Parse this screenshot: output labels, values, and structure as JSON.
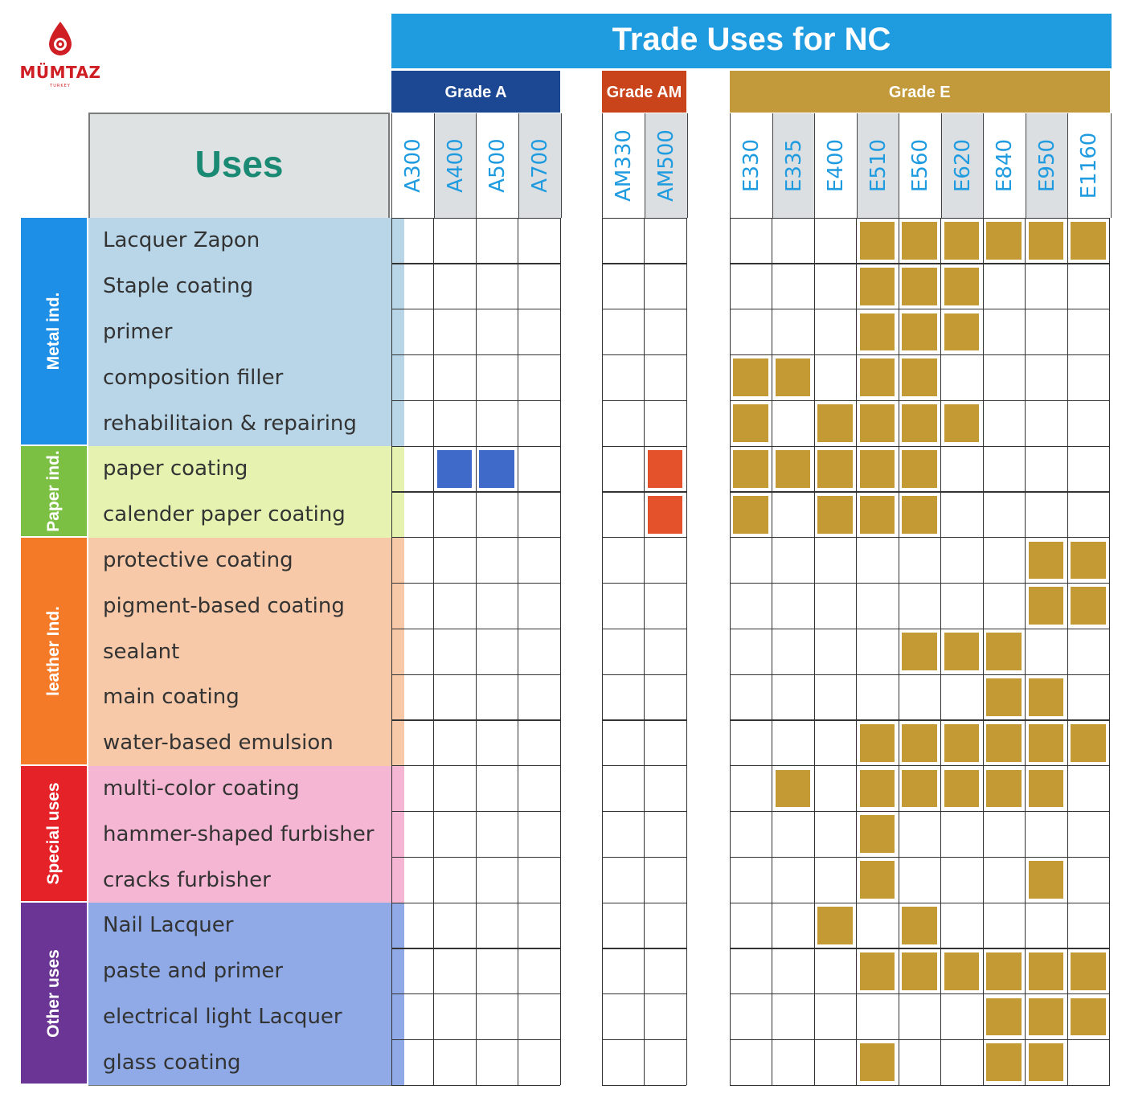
{
  "logo": {
    "name": "MÜMTAZ",
    "subtitle": "TURKEY",
    "color": "#d01f24"
  },
  "title": "Trade Uses for NC",
  "uses_header": "Uses",
  "grades": [
    {
      "label": "Grade A",
      "color": "#1c4792",
      "columns": [
        "A300",
        "A400",
        "A500",
        "A700"
      ]
    },
    {
      "label": "Grade AM",
      "color": "#c9431b",
      "columns": [
        "AM330",
        "AM500"
      ]
    },
    {
      "label": "Grade E",
      "color": "#c39a3b",
      "columns": [
        "E330",
        "E335",
        "E400",
        "E510",
        "E560",
        "E620",
        "E840",
        "E950",
        "E1160"
      ]
    }
  ],
  "mark_colors": {
    "Grade A": "#3f6ac9",
    "Grade AM": "#e3522a",
    "Grade E": "#c49a35"
  },
  "categories": [
    {
      "label": "Metal ind.",
      "color": "#1e8fe6",
      "row_color": "#b8d6e8",
      "rows": [
        "Lacquer Zapon",
        "Staple coating",
        "primer",
        "composition filler",
        "rehabilitaion & repairing"
      ]
    },
    {
      "label": "Paper ind.",
      "color": "#7bc043",
      "row_color": "#e5f2b0",
      "rows": [
        "paper coating",
        "calender paper coating"
      ]
    },
    {
      "label": "leather Ind.",
      "color": "#f47a28",
      "row_color": "#f7c9a8",
      "rows": [
        "protective coating",
        "pigment-based coating",
        "sealant",
        "main coating",
        "water-based emulsion"
      ]
    },
    {
      "label": "Special uses",
      "color": "#e42227",
      "row_color": "#f4b6d2",
      "rows": [
        "multi-color coating",
        "hammer-shaped furbisher",
        "cracks furbisher"
      ]
    },
    {
      "label": "Other uses",
      "color": "#6a3594",
      "row_color": "#8faae6",
      "rows": [
        "Nail Lacquer",
        "paste and primer",
        "electrical light Lacquer",
        "glass coating"
      ]
    }
  ],
  "marks": [
    {
      "row": "Lacquer Zapon",
      "columns": [
        "E510",
        "E560",
        "E620",
        "E840",
        "E950",
        "E1160"
      ]
    },
    {
      "row": "Staple coating",
      "columns": [
        "E510",
        "E560",
        "E620"
      ]
    },
    {
      "row": "primer",
      "columns": [
        "E510",
        "E560",
        "E620"
      ]
    },
    {
      "row": "composition filler",
      "columns": [
        "E330",
        "E335",
        "E510",
        "E560"
      ]
    },
    {
      "row": "rehabilitaion & repairing",
      "columns": [
        "E330",
        "E400",
        "E510",
        "E560",
        "E620"
      ]
    },
    {
      "row": "paper coating",
      "columns": [
        "A400",
        "A500",
        "AM500",
        "E330",
        "E335",
        "E400",
        "E510",
        "E560"
      ]
    },
    {
      "row": "calender paper coating",
      "columns": [
        "AM500",
        "E330",
        "E400",
        "E510",
        "E560"
      ]
    },
    {
      "row": "protective coating",
      "columns": [
        "E950",
        "E1160"
      ]
    },
    {
      "row": "pigment-based coating",
      "columns": [
        "E950",
        "E1160"
      ]
    },
    {
      "row": "sealant",
      "columns": [
        "E560",
        "E620",
        "E840"
      ]
    },
    {
      "row": "main coating",
      "columns": [
        "E840",
        "E950"
      ]
    },
    {
      "row": "water-based emulsion",
      "columns": [
        "E510",
        "E560",
        "E620",
        "E840",
        "E950",
        "E1160"
      ]
    },
    {
      "row": "multi-color coating",
      "columns": [
        "E335",
        "E510",
        "E560",
        "E620",
        "E840",
        "E950"
      ]
    },
    {
      "row": "hammer-shaped furbisher",
      "columns": [
        "E510"
      ]
    },
    {
      "row": "cracks furbisher",
      "columns": [
        "E510",
        "E950"
      ]
    },
    {
      "row": "Nail Lacquer",
      "columns": [
        "E400",
        "E560"
      ]
    },
    {
      "row": "paste and primer",
      "columns": [
        "E510",
        "E560",
        "E620",
        "E840",
        "E950",
        "E1160"
      ]
    },
    {
      "row": "electrical light Lacquer",
      "columns": [
        "E840",
        "E950",
        "E1160"
      ]
    },
    {
      "row": "glass coating",
      "columns": [
        "E510",
        "E840",
        "E950"
      ]
    }
  ]
}
